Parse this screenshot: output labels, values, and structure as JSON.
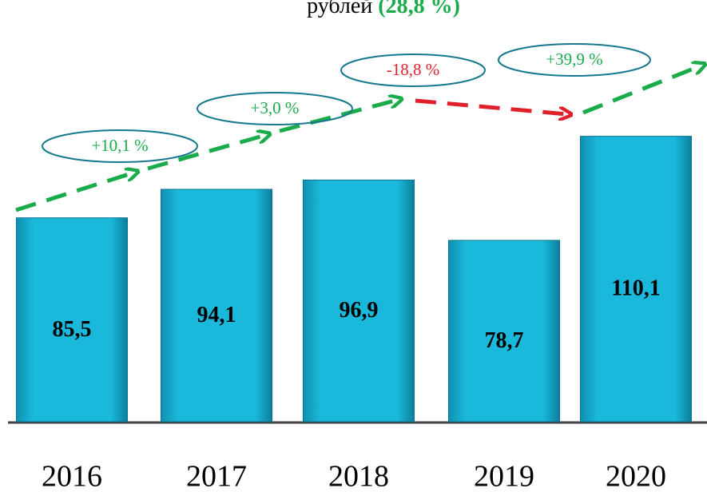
{
  "chart_data": {
    "type": "bar",
    "title": "рублей",
    "title_highlight": "(28,8 %)",
    "categories": [
      "2016",
      "2017",
      "2018",
      "2019",
      "2020"
    ],
    "values": [
      85.5,
      94.1,
      96.9,
      78.7,
      110.1
    ],
    "value_labels": [
      "85,5",
      "94,1",
      "96,9",
      "78,7",
      "110,1"
    ],
    "color": "#1ab0d3",
    "ylim": [
      24,
      130
    ],
    "annotations": [
      {
        "text": "+10,1 %",
        "color": "#1aab4b"
      },
      {
        "text": "+3,0 %",
        "color": "#1aab4b"
      },
      {
        "text": "-18,8 %",
        "color": "#e0202a"
      },
      {
        "text": "+39,9 %",
        "color": "#1aab4b"
      }
    ]
  }
}
